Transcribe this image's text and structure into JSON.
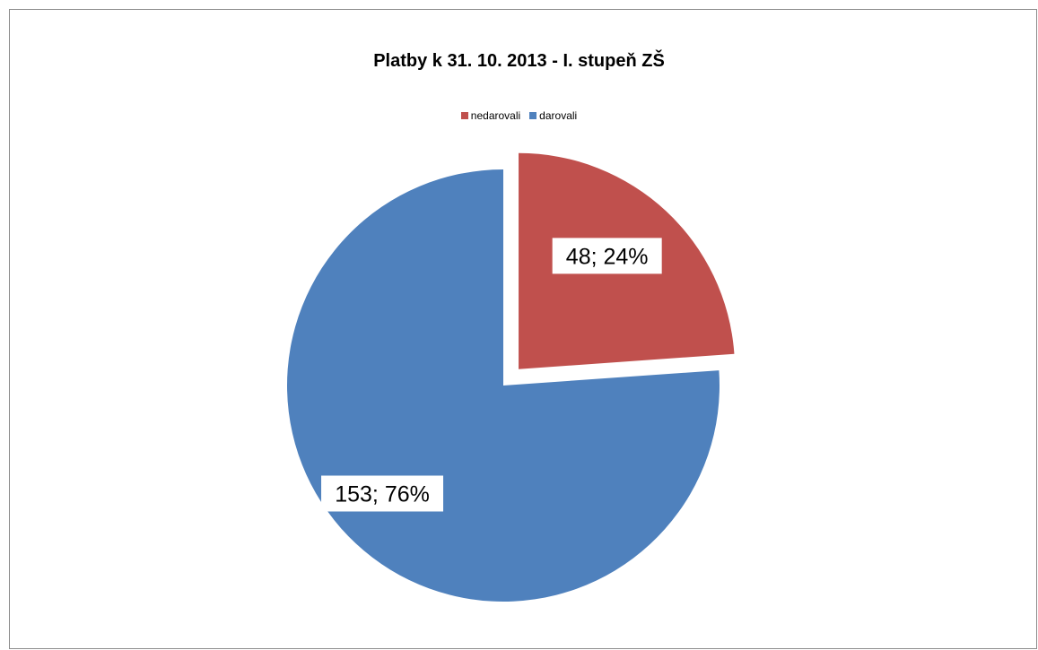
{
  "chart_data": {
    "type": "pie",
    "title": "Platby k 31. 10. 2013 - I. stupeň ZŠ",
    "categories": [
      "nedarovali",
      "darovali"
    ],
    "values": [
      48,
      153
    ],
    "percentages": [
      "24%",
      "76%"
    ],
    "data_labels": [
      "48; 24%",
      "153; 76%"
    ],
    "colors": [
      "#c0504d",
      "#4f81bd"
    ],
    "exploded_slice": "nedarovali",
    "start_angle_deg": 0,
    "direction": "clockwise",
    "legend": {
      "position": "top",
      "entries": [
        "nedarovali",
        "darovali"
      ]
    }
  }
}
